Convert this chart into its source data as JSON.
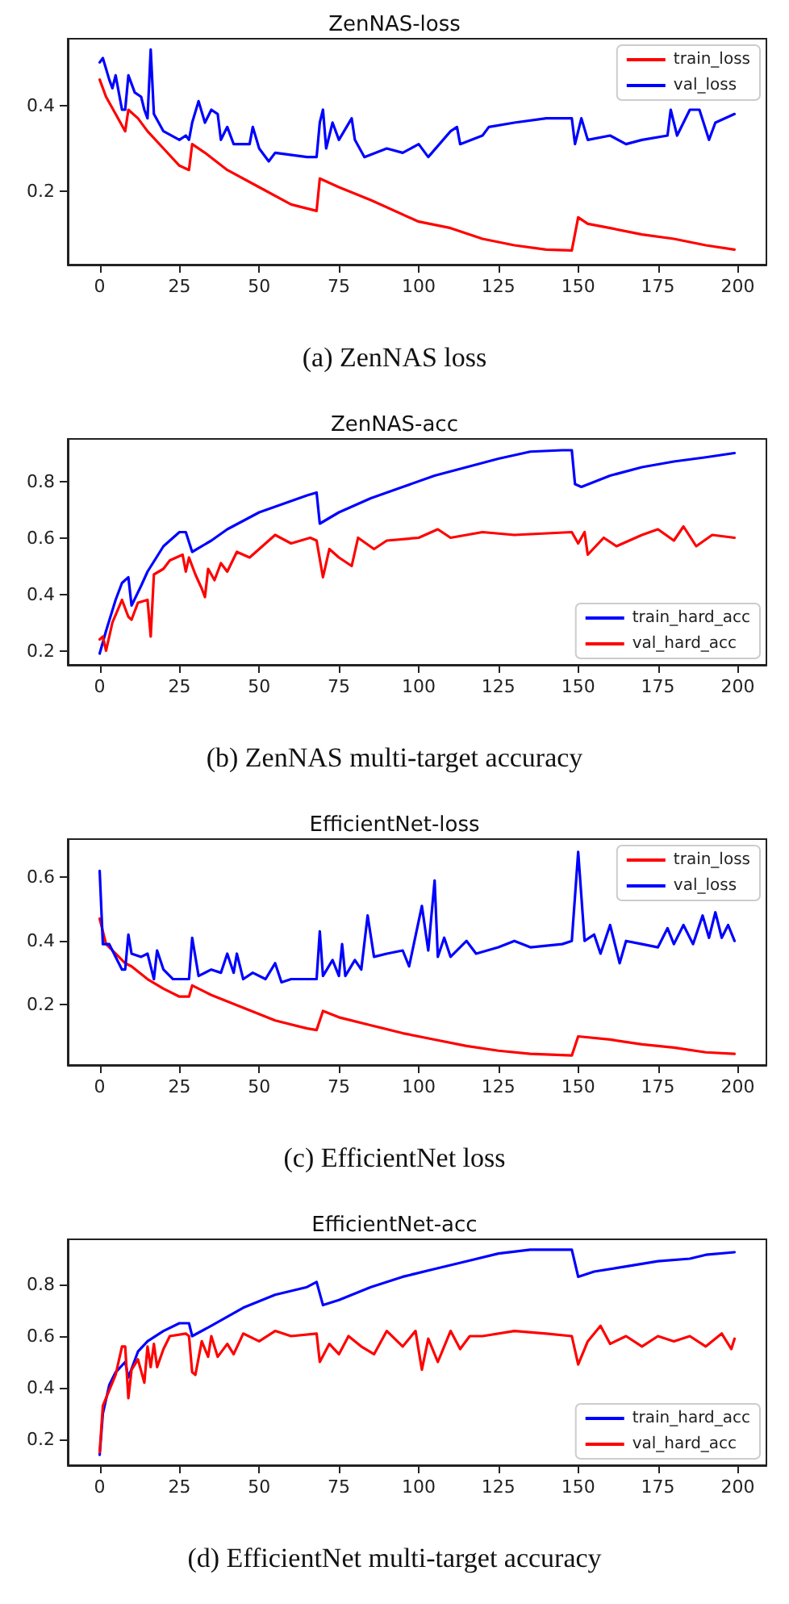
{
  "chart_data": [
    {
      "type": "line",
      "title": "ZenNAS-loss",
      "annotations": [
        "(a) ZenNAS loss"
      ],
      "xlim": [
        -10,
        209
      ],
      "xticks": [
        0,
        25,
        50,
        75,
        100,
        125,
        150,
        175,
        200
      ],
      "ylim": [
        0.03,
        0.555
      ],
      "yticks": [
        0.2,
        0.4
      ],
      "legend": "top right",
      "series": [
        {
          "name": "train_loss",
          "color": "#ff0000",
          "x": [
            0,
            2,
            5,
            8,
            9,
            12,
            15,
            20,
            25,
            28,
            29,
            33,
            40,
            50,
            60,
            68,
            69,
            75,
            85,
            100,
            110,
            120,
            130,
            140,
            148,
            150,
            153,
            160,
            170,
            180,
            190,
            199
          ],
          "values": [
            0.46,
            0.42,
            0.38,
            0.34,
            0.39,
            0.37,
            0.34,
            0.3,
            0.26,
            0.25,
            0.31,
            0.29,
            0.25,
            0.21,
            0.17,
            0.155,
            0.23,
            0.21,
            0.18,
            0.13,
            0.115,
            0.09,
            0.075,
            0.065,
            0.063,
            0.14,
            0.125,
            0.115,
            0.1,
            0.09,
            0.075,
            0.065
          ]
        },
        {
          "name": "val_loss",
          "color": "#0000ff",
          "x": [
            0,
            1,
            3,
            4,
            5,
            7,
            8,
            9,
            11,
            13,
            14,
            15,
            16,
            17,
            20,
            25,
            27,
            28,
            29,
            31,
            33,
            35,
            37,
            38,
            40,
            42,
            47,
            48,
            50,
            53,
            55,
            65,
            68,
            69,
            70,
            71,
            73,
            75,
            79,
            80,
            83,
            90,
            95,
            100,
            103,
            110,
            112,
            113,
            120,
            122,
            130,
            140,
            148,
            149,
            151,
            153,
            160,
            165,
            170,
            178,
            179,
            181,
            185,
            188,
            191,
            193,
            199
          ],
          "values": [
            0.5,
            0.51,
            0.46,
            0.44,
            0.47,
            0.39,
            0.39,
            0.47,
            0.43,
            0.42,
            0.39,
            0.37,
            0.53,
            0.38,
            0.34,
            0.32,
            0.33,
            0.32,
            0.36,
            0.41,
            0.36,
            0.39,
            0.38,
            0.32,
            0.35,
            0.31,
            0.31,
            0.35,
            0.3,
            0.27,
            0.29,
            0.28,
            0.28,
            0.36,
            0.39,
            0.3,
            0.36,
            0.32,
            0.37,
            0.32,
            0.28,
            0.3,
            0.29,
            0.31,
            0.28,
            0.34,
            0.35,
            0.31,
            0.33,
            0.35,
            0.36,
            0.37,
            0.37,
            0.31,
            0.37,
            0.32,
            0.33,
            0.31,
            0.32,
            0.33,
            0.39,
            0.33,
            0.39,
            0.39,
            0.32,
            0.36,
            0.38
          ]
        }
      ]
    },
    {
      "type": "line",
      "title": "ZenNAS-acc",
      "annotations": [
        "(b) ZenNAS multi-target accuracy"
      ],
      "xlim": [
        -10,
        209
      ],
      "xticks": [
        0,
        25,
        50,
        75,
        100,
        125,
        150,
        175,
        200
      ],
      "ylim": [
        0.15,
        0.95
      ],
      "yticks": [
        0.2,
        0.4,
        0.6,
        0.8
      ],
      "legend": "bottom right",
      "series": [
        {
          "name": "train_hard_acc",
          "color": "#0000ff",
          "x": [
            0,
            2,
            5,
            7,
            9,
            10,
            13,
            15,
            20,
            25,
            27,
            29,
            35,
            40,
            50,
            60,
            65,
            68,
            69,
            75,
            85,
            95,
            105,
            115,
            125,
            135,
            145,
            148,
            149,
            151,
            160,
            170,
            180,
            190,
            199
          ],
          "values": [
            0.19,
            0.27,
            0.38,
            0.44,
            0.46,
            0.36,
            0.43,
            0.48,
            0.57,
            0.62,
            0.62,
            0.55,
            0.59,
            0.63,
            0.69,
            0.73,
            0.75,
            0.76,
            0.65,
            0.69,
            0.74,
            0.78,
            0.82,
            0.85,
            0.88,
            0.905,
            0.91,
            0.91,
            0.79,
            0.78,
            0.82,
            0.85,
            0.87,
            0.885,
            0.9
          ]
        },
        {
          "name": "val_hard_acc",
          "color": "#ff0000",
          "x": [
            0,
            1,
            2,
            4,
            7,
            9,
            10,
            12,
            15,
            16,
            17,
            20,
            22,
            26,
            27,
            28,
            30,
            32,
            33,
            34,
            36,
            38,
            40,
            43,
            47,
            50,
            55,
            60,
            66,
            68,
            70,
            72,
            75,
            79,
            81,
            86,
            90,
            100,
            106,
            110,
            120,
            130,
            148,
            150,
            152,
            153,
            158,
            162,
            170,
            175,
            180,
            183,
            187,
            192,
            199
          ],
          "values": [
            0.24,
            0.25,
            0.2,
            0.3,
            0.38,
            0.32,
            0.31,
            0.37,
            0.38,
            0.25,
            0.47,
            0.49,
            0.52,
            0.54,
            0.48,
            0.53,
            0.47,
            0.42,
            0.39,
            0.49,
            0.45,
            0.51,
            0.48,
            0.55,
            0.53,
            0.56,
            0.61,
            0.58,
            0.6,
            0.59,
            0.46,
            0.56,
            0.53,
            0.5,
            0.6,
            0.56,
            0.59,
            0.6,
            0.63,
            0.6,
            0.62,
            0.61,
            0.62,
            0.58,
            0.62,
            0.54,
            0.6,
            0.57,
            0.61,
            0.63,
            0.59,
            0.64,
            0.57,
            0.61,
            0.6
          ]
        }
      ]
    },
    {
      "type": "line",
      "title": "EfficientNet-loss",
      "annotations": [
        "(c) EfficientNet loss"
      ],
      "xlim": [
        -10,
        209
      ],
      "xticks": [
        0,
        25,
        50,
        75,
        100,
        125,
        150,
        175,
        200
      ],
      "ylim": [
        0.01,
        0.72
      ],
      "yticks": [
        0.2,
        0.4,
        0.6
      ],
      "legend": "top right",
      "series": [
        {
          "name": "train_loss",
          "color": "#ff0000",
          "x": [
            0,
            2,
            5,
            8,
            10,
            15,
            20,
            25,
            28,
            29,
            35,
            45,
            55,
            65,
            68,
            70,
            75,
            85,
            95,
            105,
            115,
            125,
            135,
            148,
            150,
            160,
            170,
            180,
            190,
            199
          ],
          "values": [
            0.47,
            0.39,
            0.36,
            0.33,
            0.32,
            0.28,
            0.25,
            0.225,
            0.225,
            0.26,
            0.23,
            0.19,
            0.15,
            0.125,
            0.12,
            0.18,
            0.16,
            0.135,
            0.11,
            0.09,
            0.07,
            0.055,
            0.045,
            0.04,
            0.1,
            0.09,
            0.075,
            0.065,
            0.05,
            0.045
          ]
        },
        {
          "name": "val_loss",
          "color": "#0000ff",
          "x": [
            0,
            1,
            3,
            5,
            7,
            8,
            9,
            10,
            13,
            15,
            17,
            18,
            20,
            23,
            27,
            28,
            29,
            31,
            35,
            38,
            40,
            42,
            43,
            45,
            48,
            52,
            55,
            57,
            60,
            68,
            69,
            70,
            73,
            75,
            76,
            77,
            80,
            82,
            84,
            86,
            90,
            95,
            97,
            101,
            103,
            105,
            106,
            108,
            110,
            115,
            118,
            125,
            130,
            135,
            145,
            148,
            150,
            152,
            155,
            157,
            160,
            163,
            165,
            170,
            175,
            178,
            180,
            183,
            186,
            189,
            191,
            193,
            195,
            197,
            199
          ],
          "values": [
            0.62,
            0.39,
            0.39,
            0.35,
            0.31,
            0.31,
            0.42,
            0.36,
            0.35,
            0.36,
            0.28,
            0.37,
            0.31,
            0.28,
            0.28,
            0.28,
            0.41,
            0.29,
            0.31,
            0.3,
            0.36,
            0.3,
            0.36,
            0.28,
            0.3,
            0.28,
            0.33,
            0.27,
            0.28,
            0.28,
            0.43,
            0.29,
            0.34,
            0.29,
            0.39,
            0.29,
            0.34,
            0.31,
            0.48,
            0.35,
            0.36,
            0.37,
            0.32,
            0.51,
            0.37,
            0.59,
            0.35,
            0.41,
            0.35,
            0.4,
            0.36,
            0.38,
            0.4,
            0.38,
            0.39,
            0.4,
            0.68,
            0.4,
            0.42,
            0.36,
            0.45,
            0.33,
            0.4,
            0.39,
            0.38,
            0.44,
            0.39,
            0.45,
            0.39,
            0.48,
            0.41,
            0.49,
            0.41,
            0.45,
            0.4
          ]
        }
      ]
    },
    {
      "type": "line",
      "title": "EfficientNet-acc",
      "annotations": [
        "(d) EfficientNet multi-target accuracy"
      ],
      "xlim": [
        -10,
        209
      ],
      "xticks": [
        0,
        25,
        50,
        75,
        100,
        125,
        150,
        175,
        200
      ],
      "ylim": [
        0.1,
        0.975
      ],
      "yticks": [
        0.2,
        0.4,
        0.6,
        0.8
      ],
      "legend": "bottom right",
      "series": [
        {
          "name": "train_hard_acc",
          "color": "#0000ff",
          "x": [
            0,
            1,
            3,
            5,
            8,
            9,
            12,
            15,
            20,
            25,
            28,
            29,
            35,
            45,
            55,
            65,
            68,
            70,
            75,
            85,
            95,
            105,
            115,
            125,
            135,
            148,
            150,
            155,
            165,
            175,
            185,
            190,
            199
          ],
          "values": [
            0.14,
            0.3,
            0.41,
            0.46,
            0.5,
            0.44,
            0.54,
            0.58,
            0.62,
            0.65,
            0.65,
            0.6,
            0.64,
            0.71,
            0.76,
            0.79,
            0.81,
            0.72,
            0.74,
            0.79,
            0.83,
            0.86,
            0.89,
            0.92,
            0.935,
            0.935,
            0.83,
            0.85,
            0.87,
            0.89,
            0.9,
            0.915,
            0.925
          ]
        },
        {
          "name": "val_hard_acc",
          "color": "#ff0000",
          "x": [
            0,
            1,
            3,
            5,
            7,
            8,
            9,
            10,
            12,
            14,
            15,
            16,
            17,
            18,
            20,
            22,
            27,
            28,
            29,
            30,
            32,
            34,
            35,
            37,
            40,
            42,
            45,
            50,
            55,
            60,
            68,
            69,
            72,
            75,
            78,
            82,
            86,
            90,
            95,
            99,
            101,
            103,
            106,
            110,
            113,
            116,
            120,
            130,
            140,
            148,
            150,
            153,
            157,
            160,
            165,
            170,
            175,
            180,
            185,
            190,
            195,
            198,
            199
          ],
          "values": [
            0.15,
            0.33,
            0.39,
            0.45,
            0.56,
            0.56,
            0.36,
            0.47,
            0.51,
            0.42,
            0.56,
            0.48,
            0.57,
            0.48,
            0.55,
            0.6,
            0.61,
            0.6,
            0.46,
            0.45,
            0.58,
            0.52,
            0.6,
            0.52,
            0.57,
            0.53,
            0.61,
            0.58,
            0.62,
            0.6,
            0.61,
            0.5,
            0.57,
            0.53,
            0.6,
            0.56,
            0.53,
            0.62,
            0.56,
            0.62,
            0.47,
            0.59,
            0.5,
            0.62,
            0.55,
            0.6,
            0.6,
            0.62,
            0.61,
            0.6,
            0.49,
            0.58,
            0.64,
            0.57,
            0.6,
            0.56,
            0.6,
            0.58,
            0.6,
            0.56,
            0.61,
            0.55,
            0.59
          ]
        }
      ]
    }
  ]
}
